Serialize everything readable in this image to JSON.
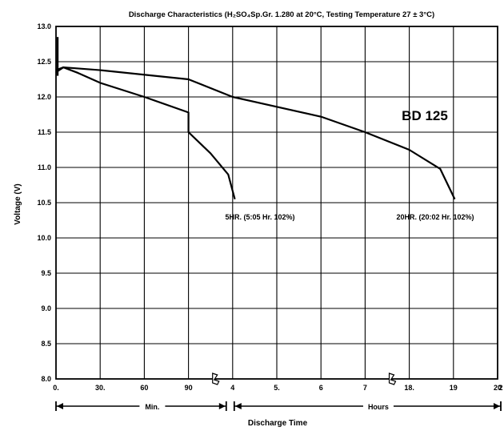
{
  "chart_data": {
    "type": "line",
    "title": "Discharge Characteristics (H₂SO₄Sp.Gr. 1.280 at 20°C, Testing Temperature 27 ± 3°C)",
    "ylabel": "Voltage (V)",
    "xlabel": "Discharge Time",
    "ylim": [
      8.0,
      13.0
    ],
    "y_ticks": [
      "13.0",
      "12.5",
      "12.0",
      "11.5",
      "11.0",
      "10.5",
      "10.0",
      "9.5",
      "9.0",
      "8.5",
      "8.0"
    ],
    "grid": true,
    "x_axis": {
      "tick_labels": [
        "0.",
        "30.",
        "60",
        "90",
        "4",
        "5.",
        "6",
        "7",
        "18.",
        "19",
        "20",
        "2"
      ],
      "units": [
        {
          "label": "Min.",
          "range": "0-120 min"
        },
        {
          "label": "Hours",
          "range": "3-21 h"
        }
      ],
      "breaks": [
        "between 90 min and 4 h",
        "between 7 h and 18 h"
      ]
    },
    "annotation": "BD 125",
    "series": [
      {
        "name": "5HR. (5:05 Hr. 102%)",
        "points": [
          {
            "t": "0 min",
            "v": 12.38
          },
          {
            "t": "5 min",
            "v": 12.42
          },
          {
            "t": "15 min",
            "v": 12.34
          },
          {
            "t": "30 min",
            "v": 12.2
          },
          {
            "t": "60 min",
            "v": 12.0
          },
          {
            "t": "90 min",
            "v": 11.78
          },
          {
            "t": "4 h",
            "v": 11.5
          },
          {
            "t": "4.5 h",
            "v": 11.2
          },
          {
            "t": "4.9 h",
            "v": 10.9
          },
          {
            "t": "5.05 h",
            "v": 10.55
          }
        ]
      },
      {
        "name": "20HR. (20:02 Hr. 102%)",
        "points": [
          {
            "t": "0 min",
            "v": 12.35
          },
          {
            "t": "5 min",
            "v": 12.42
          },
          {
            "t": "30 min",
            "v": 12.38
          },
          {
            "t": "90 min",
            "v": 12.25
          },
          {
            "t": "5 h",
            "v": 12.0
          },
          {
            "t": "7 h",
            "v": 11.72
          },
          {
            "t": "18 h",
            "v": 11.5
          },
          {
            "t": "19 h",
            "v": 11.25
          },
          {
            "t": "19.7 h",
            "v": 10.98
          },
          {
            "t": "20.03 h",
            "v": 10.55
          }
        ]
      }
    ]
  }
}
